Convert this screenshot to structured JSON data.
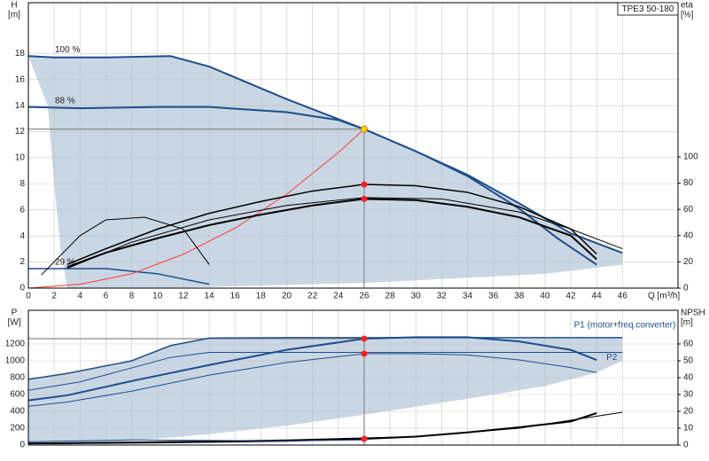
{
  "chart_data": [
    {
      "type": "line",
      "title": "TPE3 50-180",
      "ylabel": "H",
      "yunit": "[m]",
      "y2label": "eta",
      "y2unit": "[%]",
      "xlabel": "Q [m³/h]",
      "xlim": [
        0,
        50.3
      ],
      "ylim": [
        0,
        21.9
      ],
      "y2lim": [
        0,
        217.5
      ],
      "xticks": [
        0,
        2,
        4,
        6,
        8,
        10,
        12,
        14,
        16,
        18,
        20,
        22,
        24,
        26,
        28,
        30,
        32,
        34,
        36,
        38,
        40,
        42,
        44,
        46
      ],
      "yticks": [
        0,
        2,
        4,
        6,
        8,
        10,
        12,
        14,
        16,
        18
      ],
      "y2ticks": [
        0,
        20,
        40,
        60,
        80,
        100
      ],
      "grid": true,
      "xtick_labels": true,
      "series_labels": "start",
      "area": {
        "color": "#c9d7e4",
        "x": [
          0,
          2,
          6,
          11,
          14,
          20,
          26,
          30,
          34,
          38,
          42,
          46,
          46,
          40,
          34,
          26,
          20,
          14,
          10,
          3,
          2.5,
          2,
          1.5,
          0
        ],
        "values": [
          17.8,
          17.7,
          17.7,
          17.8,
          17,
          14.5,
          12.2,
          10.5,
          8.7,
          6.5,
          4.2,
          2.7,
          1.8,
          1.1,
          0.8,
          0.4,
          0.25,
          0.1,
          0,
          0,
          3,
          8,
          14,
          17.8
        ]
      },
      "series": [
        {
          "name": "100 %",
          "color": "#1f4e8c",
          "width": 2,
          "x": [
            0,
            2,
            6,
            11,
            14,
            20,
            26,
            30,
            34,
            38,
            42,
            46
          ],
          "values": [
            17.8,
            17.7,
            17.7,
            17.8,
            17,
            14.5,
            12.2,
            10.5,
            8.7,
            6.5,
            4.2,
            2.7
          ]
        },
        {
          "name": "88 %",
          "color": "#1f4e8c",
          "width": 2,
          "x": [
            0,
            4,
            10,
            14,
            20,
            24,
            26,
            30,
            34,
            38,
            41,
            44
          ],
          "values": [
            13.9,
            13.8,
            13.9,
            13.9,
            13.5,
            12.9,
            12.2,
            10.5,
            8.6,
            6.1,
            3.8,
            1.8
          ]
        },
        {
          "name": "29 %",
          "color": "#1f4e8c",
          "width": 1.5,
          "x": [
            0,
            4,
            6,
            10,
            14
          ],
          "values": [
            1.5,
            1.5,
            1.5,
            1.1,
            0.3
          ]
        },
        {
          "color": "#ff3b30",
          "width": 1,
          "x": [
            0,
            4,
            8,
            12,
            16,
            20,
            24,
            26
          ],
          "values": [
            0,
            0.3,
            1.1,
            2.6,
            4.6,
            7.2,
            10.4,
            12.2
          ]
        },
        {
          "color": "#000000",
          "width": 1.5,
          "axis": "y2",
          "x": [
            3,
            6,
            10,
            14,
            18,
            22,
            26,
            30,
            34,
            38,
            42,
            44
          ],
          "values": [
            18,
            30,
            45,
            57,
            66,
            74,
            79,
            78,
            73,
            62,
            45,
            26
          ]
        },
        {
          "color": "#000000",
          "width": 2,
          "axis": "y2",
          "x": [
            3,
            6,
            10,
            14,
            18,
            22,
            26,
            30,
            34,
            38,
            42,
            44
          ],
          "values": [
            16,
            27,
            38,
            48,
            56,
            63,
            68,
            67,
            62,
            54,
            40,
            22
          ]
        },
        {
          "color": "#000000",
          "width": 1,
          "axis": "y2",
          "x": [
            3,
            8,
            14,
            20,
            26,
            32,
            38,
            42,
            46
          ],
          "values": [
            15,
            35,
            52,
            63,
            69,
            68,
            58,
            45,
            30
          ]
        },
        {
          "color": "#000000",
          "width": 1,
          "axis": "y2",
          "x": [
            1,
            4,
            6,
            9,
            12,
            14
          ],
          "values": [
            10,
            40,
            52,
            54,
            45,
            18
          ]
        }
      ],
      "points": [
        {
          "x": 26,
          "value": 12.2,
          "color": "#ffd700",
          "guide": true
        },
        {
          "x": 26,
          "value": 79,
          "axis": "y2",
          "color": "#ff2020"
        },
        {
          "x": 26,
          "value": 68,
          "axis": "y2",
          "color": "#ff2020"
        }
      ]
    },
    {
      "type": "line",
      "ylabel": "P",
      "yunit": "[W]",
      "y2label": "NPSH",
      "y2unit": "[m]",
      "xlim": [
        0,
        50.3
      ],
      "ylim": [
        0,
        1600
      ],
      "y2lim": [
        0,
        80
      ],
      "xticks": [
        0,
        2,
        4,
        6,
        8,
        10,
        12,
        14,
        16,
        18,
        20,
        22,
        24,
        26,
        28,
        30,
        32,
        34,
        36,
        38,
        40,
        42,
        44,
        46
      ],
      "yticks": [
        0,
        200,
        400,
        600,
        800,
        1000,
        1200
      ],
      "y2ticks": [
        0,
        10,
        20,
        30,
        40,
        50,
        60
      ],
      "grid": true,
      "xtick_labels": false,
      "series_labels": "end",
      "area": {
        "color": "#c9d7e4",
        "x": [
          0,
          3,
          8,
          11,
          14,
          46,
          46,
          44,
          40,
          34,
          26,
          20,
          14,
          8,
          4,
          3,
          0
        ],
        "values": [
          780,
          850,
          1000,
          1180,
          1270,
          1275,
          1000,
          860,
          700,
          550,
          360,
          230,
          130,
          50,
          20,
          0,
          0
        ]
      },
      "series": [
        {
          "name": "P1 (motor+freq.converter)",
          "color": "#1f4e8c",
          "width": 1.5,
          "x": [
            0,
            3,
            8,
            11,
            14,
            20,
            46
          ],
          "values": [
            780,
            850,
            1000,
            1180,
            1270,
            1275,
            1275
          ]
        },
        {
          "name": "P2",
          "color": "#1f4e8c",
          "width": 1,
          "x": [
            0,
            4,
            11,
            14,
            20,
            46
          ],
          "values": [
            650,
            750,
            1040,
            1100,
            1100,
            1100
          ]
        },
        {
          "color": "#1f4e8c",
          "width": 2,
          "x": [
            0,
            3,
            8,
            14,
            20,
            26,
            30,
            34,
            38,
            42,
            44
          ],
          "values": [
            530,
            590,
            760,
            950,
            1130,
            1263,
            1280,
            1280,
            1230,
            1130,
            1010
          ]
        },
        {
          "color": "#1f4e8c",
          "width": 1,
          "x": [
            0,
            3,
            8,
            14,
            20,
            26,
            30,
            34,
            38,
            42,
            44
          ],
          "values": [
            460,
            510,
            640,
            830,
            980,
            1084,
            1084,
            1070,
            1010,
            920,
            860
          ]
        },
        {
          "color": "#000000",
          "width": 2,
          "axis": "y2",
          "x": [
            0,
            10,
            20,
            26,
            30,
            34,
            38,
            42,
            44
          ],
          "values": [
            1,
            1.5,
            2.5,
            3.7,
            5,
            7.5,
            10.5,
            14,
            19
          ]
        },
        {
          "color": "#000000",
          "width": 1,
          "axis": "y2",
          "x": [
            0,
            10,
            20,
            30,
            38,
            46
          ],
          "values": [
            1,
            2,
            3,
            5,
            10,
            19.5
          ]
        },
        {
          "color": "#1f4e8c",
          "width": 1,
          "x": [
            0,
            8,
            14,
            20,
            26
          ],
          "values": [
            40,
            60,
            55,
            50,
            60
          ]
        }
      ],
      "points": [
        {
          "x": 26,
          "value": 1263,
          "color": "#ff2020",
          "guide": true
        },
        {
          "x": 26,
          "value": 1084,
          "color": "#ff2020"
        },
        {
          "x": 26,
          "value": 3.7,
          "axis": "y2",
          "color": "#ff2020"
        }
      ]
    }
  ]
}
